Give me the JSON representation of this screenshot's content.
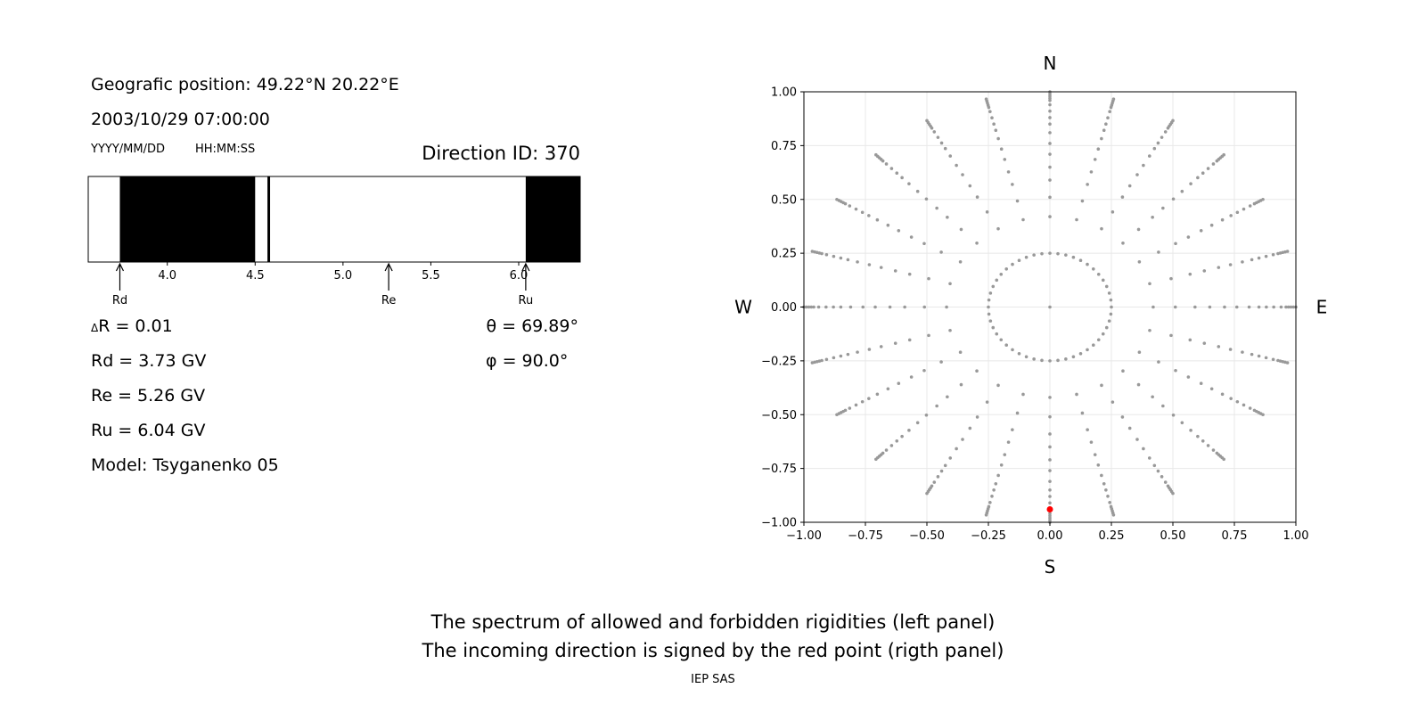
{
  "header": {
    "geo_position": "Geografic position: 49.22°N 20.22°E",
    "datetime": "2003/10/29 07:00:00",
    "date_format": "YYYY/MM/DD",
    "time_format": "HH:MM:SS",
    "direction_id": "Direction ID: 370"
  },
  "stats": {
    "delta_r_symbol": "Δ",
    "delta_r": "R = 0.01",
    "rd": "Rd = 3.73 GV",
    "re": "Re = 5.26 GV",
    "ru": "Ru = 6.04 GV",
    "model": "Model: Tsyganenko 05",
    "theta": "θ = 69.89°",
    "phi": "φ = 90.0°"
  },
  "compass": {
    "n": "N",
    "s": "S",
    "w": "W",
    "e": "E"
  },
  "captions": {
    "line1": "The spectrum of allowed and forbidden rigidities (left panel)",
    "line2": "The incoming direction is signed by the red point (rigth panel)",
    "credit": "IEP SAS"
  },
  "chart_data": [
    {
      "type": "bar",
      "subtype": "rigidity-spectrum",
      "x_unit": "GV",
      "xlim": [
        3.55,
        6.35
      ],
      "xticks": [
        4.0,
        4.5,
        5.0,
        5.5,
        6.0
      ],
      "xtick_labels": [
        "4.0",
        "4.5",
        "5.0",
        "5.5",
        "6.0"
      ],
      "forbidden_bands": [
        [
          3.73,
          4.5
        ],
        [
          4.57,
          4.585
        ],
        [
          6.04,
          6.35
        ]
      ],
      "markers": [
        {
          "label": "Rd",
          "value": 3.73
        },
        {
          "label": "Re",
          "value": 5.26
        },
        {
          "label": "Ru",
          "value": 6.04
        }
      ],
      "colors": {
        "forbidden": "#000000",
        "allowed": "#ffffff"
      }
    },
    {
      "type": "scatter",
      "subtype": "incoming-direction-polar",
      "xlim": [
        -1.0,
        1.0
      ],
      "ylim": [
        -1.0,
        1.0
      ],
      "xticks": [
        -1.0,
        -0.75,
        -0.5,
        -0.25,
        0.0,
        0.25,
        0.5,
        0.75,
        1.0
      ],
      "xtick_labels": [
        "−1.00",
        "−0.75",
        "−0.50",
        "−0.25",
        "0.00",
        "0.25",
        "0.50",
        "0.75",
        "1.00"
      ],
      "yticks": [
        -1.0,
        -0.75,
        -0.5,
        -0.25,
        0.0,
        0.25,
        0.5,
        0.75,
        1.0
      ],
      "ytick_labels": [
        "−1.00",
        "−0.75",
        "−0.50",
        "−0.25",
        "0.00",
        "0.25",
        "0.50",
        "0.75",
        "1.00"
      ],
      "grid": true,
      "grid_pattern": {
        "azimuth_count": 24,
        "ring_radii": [
          0.25,
          0.42,
          0.51,
          0.59,
          0.65,
          0.71,
          0.76,
          0.81,
          0.85,
          0.88,
          0.91,
          0.94,
          0.96,
          0.97,
          0.98,
          0.99,
          1.0
        ],
        "center_point": true,
        "point_color": "#999999"
      },
      "highlight_point": {
        "x": 0.0,
        "y": -0.94,
        "color": "#ff0000"
      }
    }
  ]
}
